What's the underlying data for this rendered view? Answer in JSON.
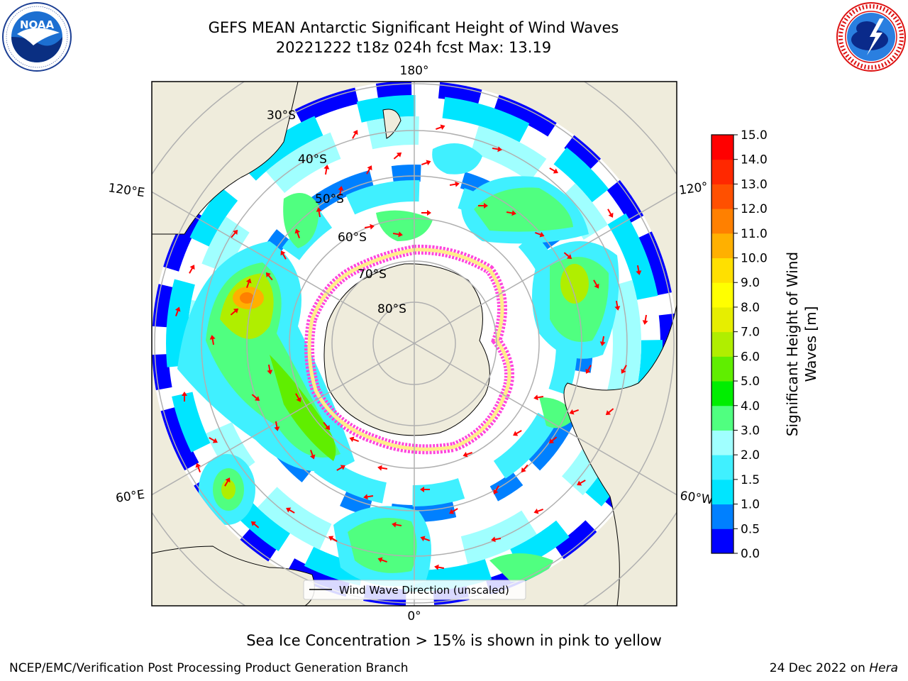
{
  "title": {
    "line1": "GEFS MEAN Antarctic Significant Height of Wind Waves",
    "line2": "20221222 t18z 024h fcst   Max: 13.19"
  },
  "logos": {
    "left": "NOAA",
    "left_ring": "NATIONAL OCEANIC AND ATMOSPHERIC ADMINISTRATION · U.S. DEPARTMENT OF COMMERCE",
    "right_ring": "NATIONAL WEATHER SERVICE"
  },
  "map": {
    "projection": "South polar stereographic",
    "longitude_labels": {
      "top": "180°",
      "left_upper": "120°E",
      "right_upper": "120°",
      "left_lower": "60°E",
      "right_lower": "60°W",
      "bottom": "0°"
    },
    "latitude_labels": [
      "30°S",
      "40°S",
      "50°S",
      "60°S",
      "70°S",
      "80°S"
    ],
    "legend": "Wind Wave Direction (unscaled)",
    "colors": {
      "land": "#efecdc",
      "ocean_none": "#ffffff",
      "gridline": "#b0b0b0",
      "arrow": "#ff0000",
      "sea_ice": "#ff44dd"
    }
  },
  "colorbar": {
    "label": "Significant Height of Wind Waves [m]",
    "label_line1": "Significant Height of Wind",
    "label_line2": "Waves [m]",
    "ticks": [
      "0.0",
      "0.5",
      "1.0",
      "1.5",
      "2.0",
      "3.0",
      "4.0",
      "5.0",
      "6.0",
      "7.0",
      "8.0",
      "9.0",
      "10.0",
      "11.0",
      "12.0",
      "13.0",
      "14.0",
      "15.0"
    ],
    "colors": [
      "#0000ff",
      "#0080ff",
      "#00e5ff",
      "#40f0ff",
      "#a0ffff",
      "#50ff80",
      "#00ee00",
      "#60ee00",
      "#b0ee00",
      "#e6ee00",
      "#ffff00",
      "#ffe000",
      "#ffb000",
      "#ff8000",
      "#ff5000",
      "#ff2800",
      "#ff0000"
    ]
  },
  "note": "Sea Ice Concentration > 15% is shown in pink to yellow",
  "footer": {
    "left": "NCEP/EMC/Verification Post Processing Product Generation Branch",
    "right_prefix": "24 Dec 2022 on ",
    "right_italic": "Hera"
  }
}
